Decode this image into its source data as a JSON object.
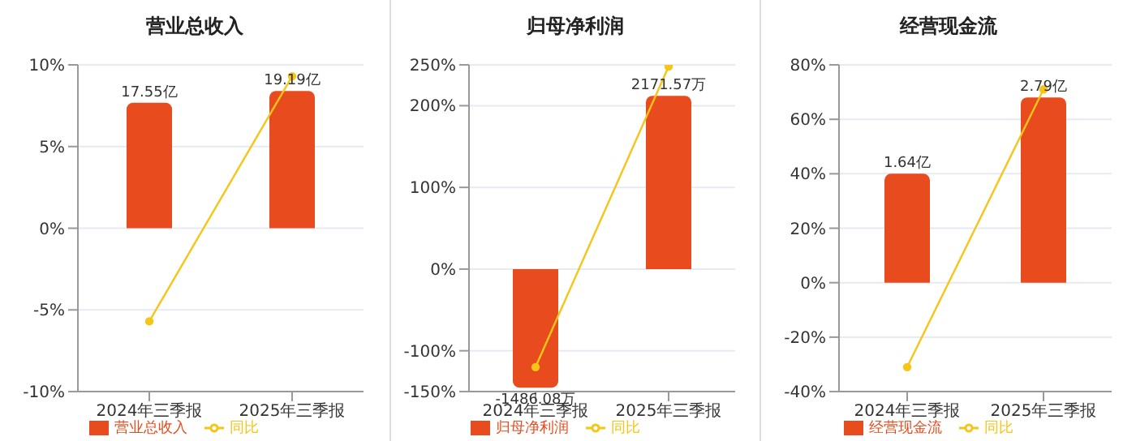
{
  "chart_data": [
    {
      "type": "bar",
      "title": "营业总收入",
      "categories": [
        "2024年三季报",
        "2025年三季报"
      ],
      "series": [
        {
          "name": "营业总收入",
          "axis": "y2",
          "color": "#e84c1e",
          "values": [
            17.55,
            19.19
          ],
          "value_labels": [
            "17.55亿",
            "19.19亿"
          ]
        },
        {
          "name": "同比",
          "type": "line",
          "color": "#f5c518",
          "values": [
            -5.7,
            9.3
          ]
        }
      ],
      "ylim": [
        -10,
        10
      ],
      "yticks": [
        {
          "value": -10,
          "label": "-10%"
        },
        {
          "value": -5,
          "label": "-5%"
        },
        {
          "value": 0,
          "label": "0%"
        },
        {
          "value": 5,
          "label": "5%"
        },
        {
          "value": 10,
          "label": "10%"
        }
      ],
      "y2lim": [
        -22.85,
        22.85
      ],
      "grid": "y",
      "legend": "bottom",
      "marker": "circle"
    },
    {
      "type": "bar",
      "title": "归母净利润",
      "categories": [
        "2024年三季报",
        "2025年三季报"
      ],
      "series": [
        {
          "name": "归母净利润",
          "axis": "y2",
          "color": "#e84c1e",
          "values": [
            -1486.08,
            2171.57
          ],
          "value_labels": [
            "-1486.08万",
            "2171.57万"
          ]
        },
        {
          "name": "同比",
          "type": "line",
          "color": "#f5c518",
          "values": [
            -120,
            248
          ]
        }
      ],
      "ylim": [
        -150,
        250
      ],
      "yticks": [
        {
          "value": -150,
          "label": "-150%"
        },
        {
          "value": -100,
          "label": "-100%"
        },
        {
          "value": 0,
          "label": "0%"
        },
        {
          "value": 100,
          "label": "100%"
        },
        {
          "value": 200,
          "label": "200%"
        },
        {
          "value": 250,
          "label": "250%"
        }
      ],
      "y2lim": [
        -1536,
        2560
      ],
      "grid": "y",
      "legend": "bottom",
      "marker": "circle"
    },
    {
      "type": "bar",
      "title": "经营现金流",
      "categories": [
        "2024年三季报",
        "2025年三季报"
      ],
      "series": [
        {
          "name": "经营现金流",
          "axis": "y2",
          "color": "#e84c1e",
          "values": [
            1.64,
            2.79
          ],
          "value_labels": [
            "1.64亿",
            "2.79亿"
          ]
        },
        {
          "name": "同比",
          "type": "line",
          "color": "#f5c518",
          "values": [
            -31,
            71
          ]
        }
      ],
      "ylim": [
        -40,
        80
      ],
      "yticks": [
        {
          "value": -40,
          "label": "-40%"
        },
        {
          "value": -20,
          "label": "-20%"
        },
        {
          "value": 0,
          "label": "0%"
        },
        {
          "value": 20,
          "label": "20%"
        },
        {
          "value": 40,
          "label": "40%"
        },
        {
          "value": 60,
          "label": "60%"
        },
        {
          "value": 80,
          "label": "80%"
        }
      ],
      "y2lim": [
        -1.64,
        3.28
      ],
      "grid": "y",
      "legend": "bottom",
      "marker": "circle"
    }
  ]
}
